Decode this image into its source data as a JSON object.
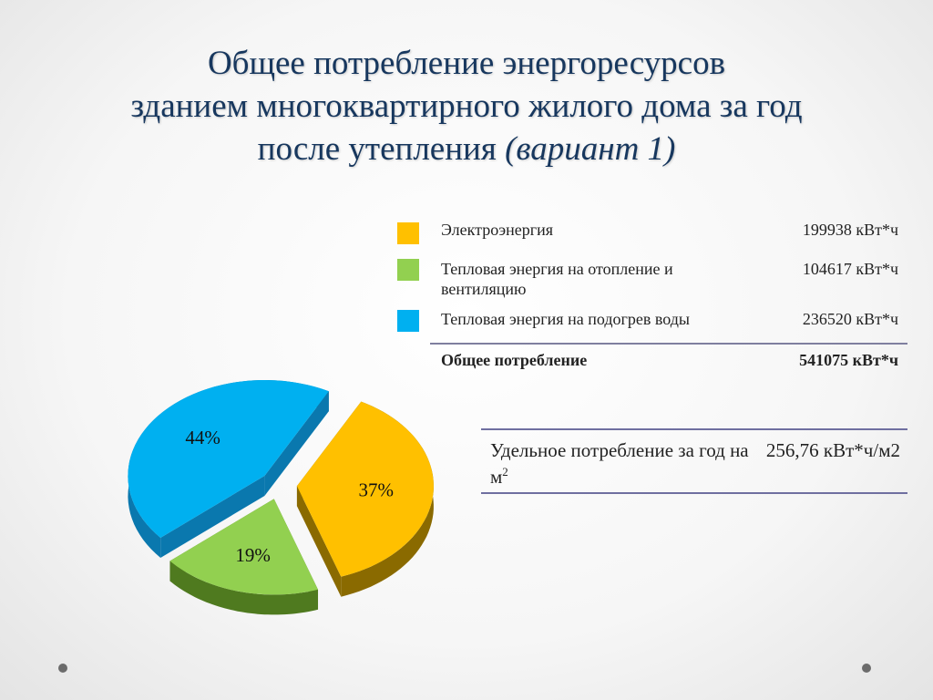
{
  "slide": {
    "title_line1": "Общее потребление энергоресурсов",
    "title_line2": "зданием многоквартирного жилого дома за год",
    "title_line3_plain": "после утепления",
    "title_line3_italic": "(вариант 1)"
  },
  "legend": {
    "items": [
      {
        "label": "Электроэнергия",
        "value": "199938 кВт*ч",
        "color": "#ffc000"
      },
      {
        "label": "Тепловая энергия на отопление и вентиляцию",
        "value": "104617 кВт*ч",
        "color": "#92d050"
      },
      {
        "label": "Тепловая энергия на подогрев воды",
        "value": "236520 кВт*ч",
        "color": "#00b0f0"
      }
    ],
    "total_label": "Общее потребление",
    "total_value": "541075 кВт*ч"
  },
  "specific": {
    "label": "Удельное потребление за год на м",
    "label_sup": "2",
    "value": "256,76 кВт*ч/м2"
  },
  "chart_data": {
    "type": "pie",
    "categories": [
      "Электроэнергия",
      "Тепловая энергия на отопление и вентиляцию",
      "Тепловая энергия на подогрев воды"
    ],
    "values": [
      37,
      19,
      44
    ],
    "labels": [
      "37%",
      "19%",
      "44%"
    ],
    "colors": [
      "#ffc000",
      "#92d050",
      "#00b0f0"
    ],
    "side_colors": [
      "#8a6a00",
      "#4f7a1f",
      "#0a78ae"
    ],
    "style": "3d-exploded",
    "legend": "top-right"
  }
}
